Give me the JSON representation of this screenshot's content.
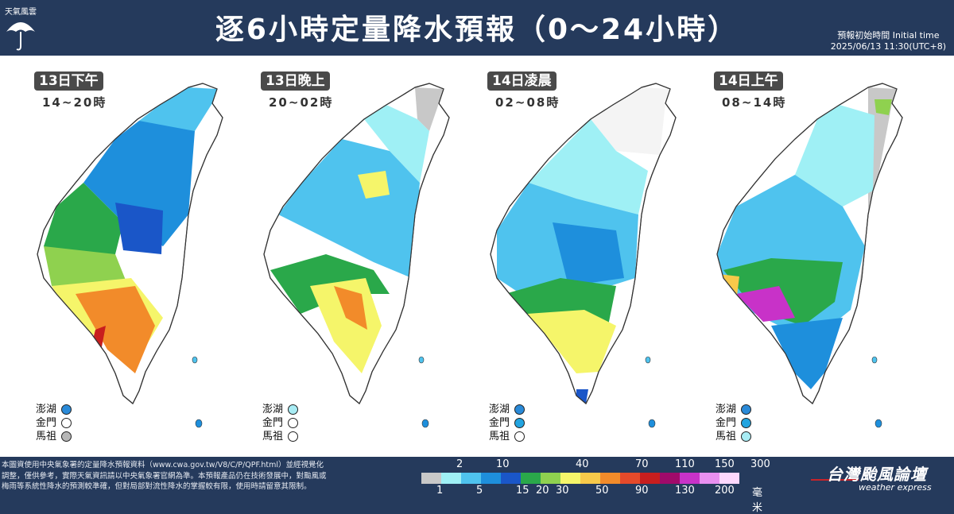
{
  "header": {
    "logo_text": "天氣風雲",
    "title": "逐6小時定量降水預報（0～24小時）",
    "init_label": "預報初始時間 Initial time",
    "init_time": "2025/06/13  11:30(UTC+8)"
  },
  "panels": [
    {
      "day": "13日下午",
      "time": "14~20時",
      "islands": [
        {
          "name": "澎湖",
          "color": "#2a8ad8"
        },
        {
          "name": "金門",
          "color": "#ffffff"
        },
        {
          "name": "馬祖",
          "color": "#b7b7b7"
        }
      ]
    },
    {
      "day": "13日晚上",
      "time": "20~02時",
      "islands": [
        {
          "name": "澎湖",
          "color": "#a8ecf4"
        },
        {
          "name": "金門",
          "color": "#ffffff"
        },
        {
          "name": "馬祖",
          "color": "#ffffff"
        }
      ]
    },
    {
      "day": "14日凌晨",
      "time": "02~08時",
      "islands": [
        {
          "name": "澎湖",
          "color": "#2a8ad8"
        },
        {
          "name": "金門",
          "color": "#22a4e0"
        },
        {
          "name": "馬祖",
          "color": "#ffffff"
        }
      ]
    },
    {
      "day": "14日上午",
      "time": "08~14時",
      "islands": [
        {
          "name": "澎湖",
          "color": "#2a8ad8"
        },
        {
          "name": "金門",
          "color": "#22a4e0"
        },
        {
          "name": "馬祖",
          "color": "#a8ecf4"
        }
      ]
    }
  ],
  "footer": {
    "note_line1": "本圖資使用中央氣象署的定量降水預報資料（www.cwa.gov.tw/V8/C/P/QPF.html）並經視覺化",
    "note_line2": "調整，僅供參考，實際天氣資訊請以中央氣象署官網為準。本預報產品仍在技術發展中，對颱風或",
    "note_line3": "梅雨等系統性降水的預測較準確，但對局部對流性降水的掌握較有限，使用時請留意其限制。",
    "unit": "毫米",
    "brand_name": "台灣颱風論壇",
    "brand_sub": "weather express"
  },
  "legend": {
    "top_ticks": [
      "2",
      "10",
      "40",
      "70",
      "110",
      "150",
      "300"
    ],
    "bottom_ticks": [
      "1",
      "5",
      "15",
      "20",
      "30",
      "50",
      "90",
      "130",
      "200"
    ],
    "colors": [
      "#c8c8c8",
      "#9ff0f5",
      "#4fc3ee",
      "#1e8fdc",
      "#1a56c8",
      "#2aa84a",
      "#8fd14f",
      "#f5f56a",
      "#f7c94a",
      "#f28b2a",
      "#e54a2a",
      "#c81e1e",
      "#a00a6a",
      "#c832c8",
      "#e890f0",
      "#fdd8fd"
    ]
  }
}
